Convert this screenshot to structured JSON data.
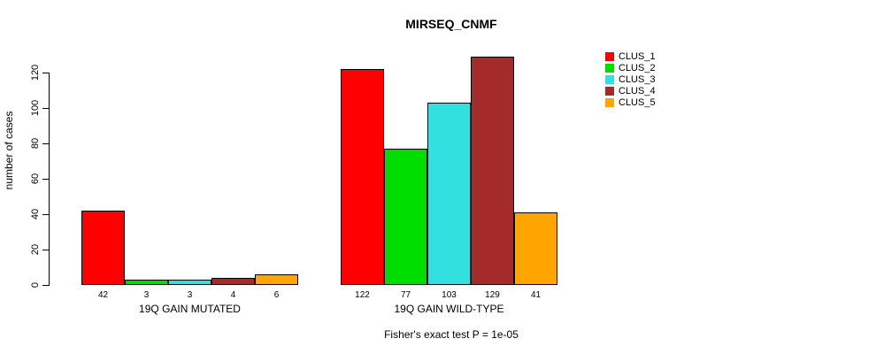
{
  "chart_data": {
    "type": "bar",
    "title": "MIRSEQ_CNMF",
    "ylabel": "number of cases",
    "footnote": "Fisher's exact test P = 1e-05",
    "series_names": [
      "CLUS_1",
      "CLUS_2",
      "CLUS_3",
      "CLUS_4",
      "CLUS_5"
    ],
    "series_colors": [
      "#FF0000",
      "#00DD00",
      "#33E0E0",
      "#A52A2A",
      "#FFA500"
    ],
    "groups": [
      {
        "label": "19Q GAIN MUTATED",
        "values": [
          42,
          3,
          3,
          4,
          6
        ]
      },
      {
        "label": "19Q GAIN WILD-TYPE",
        "values": [
          122,
          77,
          103,
          129,
          41
        ]
      }
    ],
    "yticks": [
      0,
      20,
      40,
      60,
      80,
      100,
      120
    ],
    "ylim": [
      0,
      130
    ],
    "grid": false,
    "legend_position": "right"
  }
}
